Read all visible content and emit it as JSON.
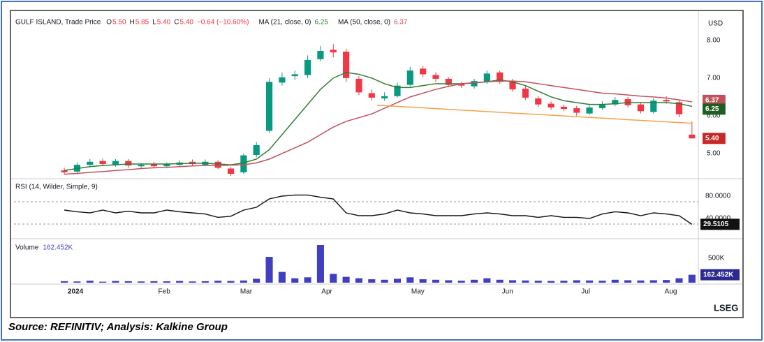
{
  "chart_data": [
    {
      "type": "candlestick",
      "title": "GULF ISLAND, Trade Price",
      "ohlc_labels": [
        {
          "label": "O",
          "value": "5.50"
        },
        {
          "label": "H",
          "value": "5.85"
        },
        {
          "label": "L",
          "value": "5.40"
        },
        {
          "label": "C",
          "value": "5.40"
        }
      ],
      "change_label": "−0.64 (−10.60%)",
      "currency": "USD",
      "up_color": "#089981",
      "down_color": "#f23645",
      "x": [
        0,
        1,
        2,
        3,
        4,
        5,
        6,
        7,
        8,
        9,
        10,
        11,
        12,
        13,
        14,
        15,
        16,
        17,
        18,
        19,
        20,
        21,
        22,
        23,
        24,
        25,
        26,
        27,
        28,
        29,
        30,
        31,
        32,
        33,
        34,
        35,
        36,
        37,
        38,
        39,
        40,
        41,
        42,
        43,
        44,
        45,
        46,
        47,
        48,
        49
      ],
      "xlim": [
        -3.93,
        49.5
      ],
      "xticks": [
        {
          "value": 0.87,
          "label": "2024"
        },
        {
          "value": 7.8,
          "label": "Feb"
        },
        {
          "value": 14.2,
          "label": "Mar"
        },
        {
          "value": 20.5,
          "label": "Apr"
        },
        {
          "value": 27.6,
          "label": "May"
        },
        {
          "value": 34.6,
          "label": "Jun"
        },
        {
          "value": 40.7,
          "label": "Jul"
        },
        {
          "value": 47.35,
          "label": "Aug"
        }
      ],
      "open": [
        4.55,
        4.52,
        4.7,
        4.8,
        4.7,
        4.8,
        4.66,
        4.72,
        4.66,
        4.7,
        4.78,
        4.7,
        4.78,
        4.6,
        4.5,
        4.96,
        5.6,
        6.88,
        7.05,
        7.08,
        7.5,
        7.75,
        7.7,
        6.98,
        6.6,
        6.46,
        6.52,
        6.82,
        7.25,
        7.08,
        6.98,
        6.84,
        6.78,
        6.9,
        7.15,
        6.92,
        6.72,
        6.46,
        6.32,
        6.24,
        6.2,
        6.06,
        6.2,
        6.3,
        6.44,
        6.3,
        6.1,
        6.42,
        6.36,
        5.5
      ],
      "high": [
        4.62,
        4.76,
        4.85,
        4.86,
        4.85,
        4.85,
        4.75,
        4.78,
        4.76,
        4.82,
        4.84,
        4.84,
        4.82,
        4.64,
        5.0,
        5.3,
        7.0,
        7.15,
        7.2,
        7.6,
        7.85,
        7.9,
        7.78,
        7.05,
        6.7,
        6.62,
        6.88,
        7.3,
        7.32,
        7.15,
        7.02,
        6.9,
        6.98,
        7.2,
        7.2,
        6.98,
        6.78,
        6.52,
        6.38,
        6.3,
        6.26,
        6.28,
        6.38,
        6.5,
        6.5,
        6.36,
        6.46,
        6.52,
        6.42,
        5.85
      ],
      "low": [
        4.44,
        4.48,
        4.66,
        4.68,
        4.65,
        4.62,
        4.62,
        4.6,
        4.62,
        4.66,
        4.66,
        4.66,
        4.58,
        4.4,
        4.46,
        4.9,
        5.55,
        6.8,
        6.95,
        7.0,
        7.45,
        7.55,
        6.9,
        6.55,
        6.4,
        6.4,
        6.48,
        6.78,
        7.02,
        6.9,
        6.76,
        6.74,
        6.72,
        6.85,
        6.85,
        6.64,
        6.42,
        6.24,
        6.16,
        6.12,
        6.0,
        6.02,
        6.16,
        6.25,
        6.22,
        6.06,
        6.06,
        6.32,
        5.96,
        5.4
      ],
      "close": [
        4.5,
        4.7,
        4.78,
        4.72,
        4.8,
        4.68,
        4.7,
        4.66,
        4.72,
        4.76,
        4.72,
        4.78,
        4.62,
        4.46,
        4.95,
        5.22,
        6.9,
        7.02,
        7.1,
        7.48,
        7.72,
        7.68,
        7.0,
        6.62,
        6.48,
        6.52,
        6.8,
        7.2,
        7.1,
        6.98,
        6.82,
        6.8,
        6.92,
        7.12,
        6.9,
        6.7,
        6.48,
        6.3,
        6.22,
        6.18,
        6.08,
        6.22,
        6.3,
        6.42,
        6.28,
        6.12,
        6.4,
        6.38,
        6.04,
        5.4
      ],
      "series": [
        {
          "name": "MA (21, close, 0)",
          "last_label": "6.25",
          "color": "#2e7d32",
          "values": [
            4.55,
            4.6,
            4.65,
            4.68,
            4.7,
            4.72,
            4.72,
            4.72,
            4.72,
            4.73,
            4.74,
            4.74,
            4.72,
            4.7,
            4.75,
            4.85,
            5.1,
            5.5,
            5.9,
            6.3,
            6.7,
            7.0,
            7.15,
            7.1,
            7.0,
            6.85,
            6.75,
            6.75,
            6.8,
            6.85,
            6.85,
            6.85,
            6.87,
            6.9,
            6.95,
            6.9,
            6.8,
            6.65,
            6.5,
            6.4,
            6.35,
            6.3,
            6.3,
            6.32,
            6.35,
            6.35,
            6.35,
            6.35,
            6.32,
            6.25
          ]
        },
        {
          "name": "MA (50, close, 0)",
          "last_label": "6.37",
          "color": "#c2505a",
          "values": [
            4.45,
            4.47,
            4.5,
            4.52,
            4.55,
            4.57,
            4.6,
            4.62,
            4.63,
            4.65,
            4.67,
            4.68,
            4.68,
            4.69,
            4.7,
            4.75,
            4.85,
            5.0,
            5.15,
            5.3,
            5.5,
            5.7,
            5.85,
            5.95,
            6.05,
            6.2,
            6.35,
            6.5,
            6.6,
            6.7,
            6.78,
            6.85,
            6.88,
            6.9,
            6.92,
            6.92,
            6.9,
            6.85,
            6.8,
            6.75,
            6.7,
            6.65,
            6.6,
            6.58,
            6.55,
            6.52,
            6.5,
            6.47,
            6.42,
            6.37
          ]
        }
      ],
      "last_price_label": "5.40",
      "trend_line": {
        "color": "#f5a04a",
        "x": [
          24.4,
          49
        ],
        "values": [
          6.28,
          5.8
        ]
      },
      "ylim": [
        4.35,
        8.7
      ],
      "yticks": [
        {
          "value": 5,
          "label": "5.00"
        },
        {
          "value": 6,
          "label": "6.00"
        },
        {
          "value": 7,
          "label": "7.00"
        },
        {
          "value": 8,
          "label": "8.00"
        }
      ]
    },
    {
      "type": "line",
      "title": "RSI (14, Wilder, Simple, 9)",
      "color": "#111111",
      "x": [
        0,
        1,
        2,
        3,
        4,
        5,
        6,
        7,
        8,
        9,
        10,
        11,
        12,
        13,
        14,
        15,
        16,
        17,
        18,
        19,
        20,
        21,
        22,
        23,
        24,
        25,
        26,
        27,
        28,
        29,
        30,
        31,
        32,
        33,
        34,
        35,
        36,
        37,
        38,
        39,
        40,
        41,
        42,
        43,
        44,
        45,
        46,
        47,
        48,
        49
      ],
      "xlim": [
        -3.93,
        49.5
      ],
      "values": [
        55,
        52,
        50,
        55,
        50,
        53,
        50,
        50,
        55,
        52,
        50,
        48,
        42,
        44,
        55,
        60,
        75,
        80,
        82,
        82,
        78,
        75,
        50,
        45,
        45,
        48,
        55,
        50,
        48,
        45,
        45,
        45,
        48,
        50,
        48,
        45,
        45,
        42,
        45,
        42,
        42,
        40,
        48,
        52,
        50,
        45,
        50,
        48,
        45,
        29.5105
      ],
      "last_label": "29.5105",
      "bands": [
        70,
        30
      ],
      "ylim": [
        6.25,
        108.75
      ],
      "yticks": [
        {
          "value": 40,
          "label": "40.0000"
        },
        {
          "value": 80,
          "label": "80.0000"
        }
      ]
    },
    {
      "type": "bar",
      "title": "Volume",
      "color": "#3f3fbf",
      "x": [
        0,
        1,
        2,
        3,
        4,
        5,
        6,
        7,
        8,
        9,
        10,
        11,
        12,
        13,
        14,
        15,
        16,
        17,
        18,
        19,
        20,
        21,
        22,
        23,
        24,
        25,
        26,
        27,
        28,
        29,
        30,
        31,
        32,
        33,
        34,
        35,
        36,
        37,
        38,
        39,
        40,
        41,
        42,
        43,
        44,
        45,
        46,
        47,
        48,
        49
      ],
      "xlim": [
        -3.93,
        49.5
      ],
      "values": [
        30000,
        25000,
        40000,
        20000,
        35000,
        30000,
        25000,
        30000,
        28000,
        35000,
        25000,
        30000,
        40000,
        35000,
        45000,
        80000,
        528000,
        220000,
        90000,
        110000,
        771000,
        180000,
        120000,
        90000,
        70000,
        60000,
        80000,
        110000,
        70000,
        60000,
        50000,
        40000,
        60000,
        90000,
        60000,
        50000,
        45000,
        40000,
        35000,
        40000,
        50000,
        45000,
        40000,
        60000,
        50000,
        45000,
        50000,
        55000,
        90000,
        162452
      ],
      "last_label": "162.452K",
      "ylim": [
        0,
        857000
      ],
      "yticks": [
        {
          "value": 500000,
          "label": "500K"
        }
      ]
    }
  ],
  "brand": "LSEG",
  "source": "Source: REFINITIV; Analysis: Kalkine Group"
}
